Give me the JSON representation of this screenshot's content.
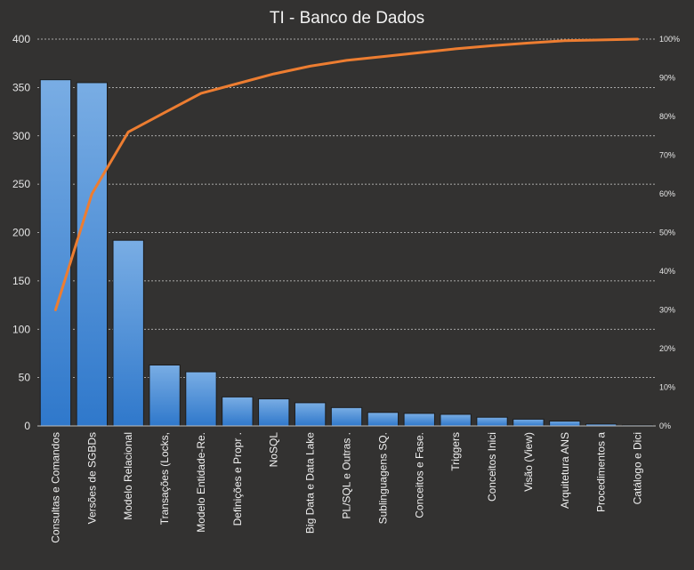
{
  "chart_data": {
    "type": "bar",
    "title": "TI - Banco de Dados",
    "categories": [
      "Consultas e Comandos",
      "Versões de SGBDs",
      "Modelo Relacional",
      "Transações (Locks,",
      "Modelo Entidade-Re.",
      "Definições e Propr .",
      "NoSQL",
      "Big Data e Data Lake",
      "PL/SQL e Outras .",
      "Sublinguagens SQ.",
      "Conceitos e Fase.",
      "Triggers",
      "Conceitos Inici",
      "Visão (View)",
      "Arquitetura ANS",
      "Procedimentos  a",
      "Catálogo e Dici"
    ],
    "series": [
      {
        "type": "bar",
        "values": [
          358,
          355,
          192,
          63,
          56,
          30,
          28,
          24,
          19,
          14,
          13,
          12,
          9,
          7,
          5,
          2,
          1
        ],
        "color": "#5b9bd5"
      },
      {
        "type": "line",
        "axis": "right",
        "values": [
          30,
          60,
          76,
          81,
          86,
          88.5,
          91,
          93,
          94.5,
          95.5,
          96.5,
          97.5,
          98.3,
          99,
          99.6,
          99.8,
          100
        ],
        "color": "#ed7d31"
      }
    ],
    "ylim": [
      0,
      400
    ],
    "yticks": [
      0,
      50,
      100,
      150,
      200,
      250,
      300,
      350,
      400
    ],
    "y2lim": [
      0,
      100
    ],
    "y2ticks": [
      "0%",
      "10%",
      "20%",
      "30%",
      "40%",
      "50%",
      "60%",
      "70%",
      "80%",
      "90%",
      "100%"
    ],
    "grid": true,
    "legend": "none"
  }
}
